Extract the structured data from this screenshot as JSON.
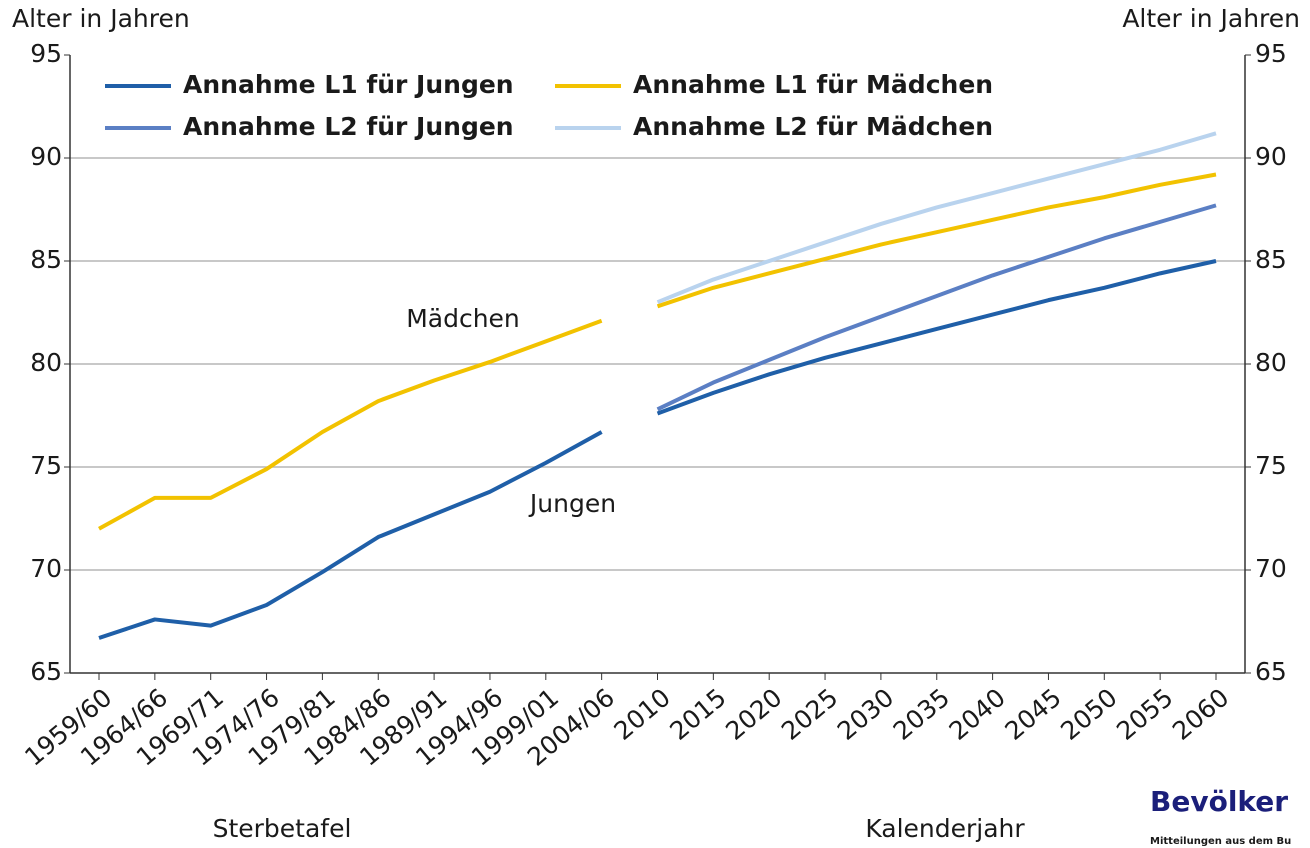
{
  "chart_data": {
    "type": "line",
    "y_label_left": "Alter in Jahren",
    "y_label_right": "Alter in Jahren",
    "x_label_left": "Sterbetafel",
    "x_label_right": "Kalenderjahr",
    "annotations": [
      "Mädchen",
      "Jungen"
    ],
    "categories": [
      "1959/60",
      "1964/66",
      "1969/71",
      "1974/76",
      "1979/81",
      "1984/86",
      "1989/91",
      "1994/96",
      "1999/01",
      "2004/06",
      "2010",
      "2015",
      "2020",
      "2025",
      "2030",
      "2035",
      "2040",
      "2045",
      "2050",
      "2055",
      "2060"
    ],
    "series": [
      {
        "color": "#1f5fa8",
        "values": [
          66.7,
          67.6,
          67.3,
          68.3,
          69.9,
          71.6,
          72.7,
          73.8,
          75.2,
          76.7,
          null,
          null,
          null,
          null,
          null,
          null,
          null,
          null,
          null,
          null,
          null
        ]
      },
      {
        "color": "#f2c200",
        "values": [
          72.0,
          73.5,
          73.5,
          74.9,
          76.7,
          78.2,
          79.2,
          80.1,
          81.1,
          82.1,
          null,
          null,
          null,
          null,
          null,
          null,
          null,
          null,
          null,
          null,
          null
        ]
      },
      {
        "name": "Annahme L1 für Jungen",
        "color": "#1f5fa8",
        "values": [
          null,
          null,
          null,
          null,
          null,
          null,
          null,
          null,
          null,
          null,
          77.6,
          78.6,
          79.5,
          80.3,
          81.0,
          81.7,
          82.4,
          83.1,
          83.7,
          84.4,
          85.0
        ]
      },
      {
        "name": "Annahme L1 für Mädchen",
        "color": "#f2c200",
        "values": [
          null,
          null,
          null,
          null,
          null,
          null,
          null,
          null,
          null,
          null,
          82.8,
          83.7,
          84.4,
          85.1,
          85.8,
          86.4,
          87.0,
          87.6,
          88.1,
          88.7,
          89.2
        ]
      },
      {
        "name": "Annahme L2 für Jungen",
        "color": "#5b7fc4",
        "values": [
          null,
          null,
          null,
          null,
          null,
          null,
          null,
          null,
          null,
          null,
          77.8,
          79.1,
          80.2,
          81.3,
          82.3,
          83.3,
          84.3,
          85.2,
          86.1,
          86.9,
          87.7
        ]
      },
      {
        "name": "Annahme L2 für Mädchen",
        "color": "#b9d3ee",
        "values": [
          null,
          null,
          null,
          null,
          null,
          null,
          null,
          null,
          null,
          null,
          83.0,
          84.1,
          85.0,
          85.9,
          86.8,
          87.6,
          88.3,
          89.0,
          89.7,
          90.4,
          91.2
        ]
      }
    ],
    "ylim": [
      65,
      95
    ],
    "yticks": [
      65,
      70,
      75,
      80,
      85,
      90,
      95
    ],
    "grid": true,
    "logo": {
      "title": "Bevölker",
      "subtitle": "Mitteilungen aus dem Bu"
    }
  }
}
